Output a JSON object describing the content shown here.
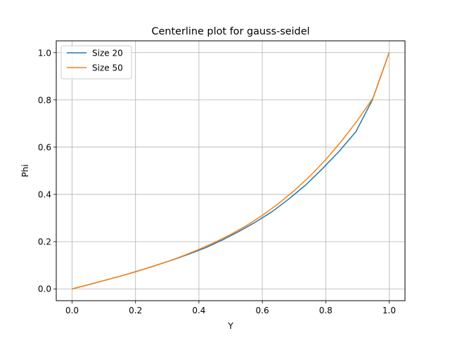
{
  "chart_data": {
    "type": "line",
    "title": "Centerline plot for gauss-seidel",
    "xlabel": "Y",
    "ylabel": "Phi",
    "xlim": [
      -0.05,
      1.05
    ],
    "ylim": [
      -0.05,
      1.05
    ],
    "xticks": [
      0.0,
      0.2,
      0.4,
      0.6,
      0.8,
      1.0
    ],
    "yticks": [
      0.0,
      0.2,
      0.4,
      0.6,
      0.8,
      1.0
    ],
    "xtick_labels": [
      "0.0",
      "0.2",
      "0.4",
      "0.6",
      "0.8",
      "1.0"
    ],
    "ytick_labels": [
      "0.0",
      "0.2",
      "0.4",
      "0.6",
      "0.8",
      "1.0"
    ],
    "grid": true,
    "legend_position": "top-left",
    "series": [
      {
        "name": "Size 20",
        "color": "#1f77b4",
        "x": [
          0.0,
          0.053,
          0.105,
          0.158,
          0.211,
          0.263,
          0.316,
          0.368,
          0.421,
          0.474,
          0.526,
          0.579,
          0.632,
          0.684,
          0.737,
          0.789,
          0.842,
          0.895,
          0.947,
          1.0
        ],
        "y": [
          0.0,
          0.018,
          0.037,
          0.056,
          0.077,
          0.099,
          0.122,
          0.147,
          0.174,
          0.207,
          0.243,
          0.283,
          0.328,
          0.381,
          0.44,
          0.508,
          0.582,
          0.665,
          0.8,
          1.0
        ]
      },
      {
        "name": "Size 50",
        "color": "#ff7f0e",
        "x": [
          0.0,
          0.05,
          0.1,
          0.15,
          0.2,
          0.25,
          0.3,
          0.35,
          0.4,
          0.45,
          0.5,
          0.55,
          0.6,
          0.65,
          0.7,
          0.75,
          0.8,
          0.85,
          0.9,
          0.95,
          1.0
        ],
        "y": [
          0.0,
          0.017,
          0.035,
          0.053,
          0.072,
          0.093,
          0.115,
          0.14,
          0.167,
          0.197,
          0.23,
          0.268,
          0.311,
          0.36,
          0.415,
          0.477,
          0.547,
          0.626,
          0.713,
          0.81,
          1.0
        ]
      }
    ]
  }
}
